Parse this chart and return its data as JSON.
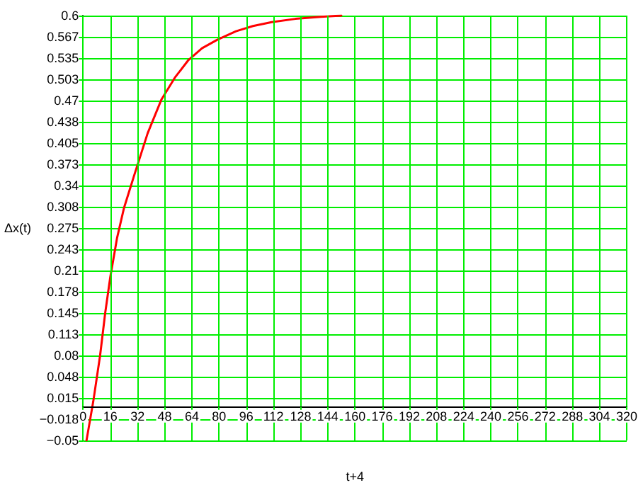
{
  "chart_data": {
    "type": "line",
    "xlabel": "t+4",
    "ylabel": "Δx(t)",
    "series": [
      {
        "color": "#ff0000",
        "x": [
          2,
          6,
          10,
          13,
          16,
          20,
          24,
          30,
          38,
          46,
          54,
          62,
          70,
          79,
          90,
          100,
          111,
          125,
          140,
          152
        ],
        "values": [
          -0.05,
          0.01,
          0.08,
          0.145,
          0.2,
          0.26,
          0.305,
          0.355,
          0.42,
          0.471,
          0.505,
          0.532,
          0.55,
          0.563,
          0.576,
          0.584,
          0.59,
          0.595,
          0.598,
          0.6
        ]
      }
    ],
    "xlim": [
      0,
      320
    ],
    "xticks": [
      0,
      16,
      32,
      48,
      64,
      80,
      96,
      112,
      128,
      144,
      160,
      176,
      192,
      208,
      224,
      240,
      256,
      272,
      288,
      304,
      320
    ],
    "ylim": [
      -0.05,
      0.6
    ],
    "yticks": [
      {
        "value": -0.05,
        "label": "−0.05"
      },
      {
        "value": -0.0175,
        "label": "−0.018"
      },
      0.015,
      {
        "value": 0.0475,
        "label": "0.048"
      },
      0.08,
      {
        "value": 0.1125,
        "label": "0.113"
      },
      0.145,
      {
        "value": 0.1775,
        "label": "0.178"
      },
      0.21,
      {
        "value": 0.2425,
        "label": "0.243"
      },
      0.275,
      {
        "value": 0.3075,
        "label": "0.308"
      },
      0.34,
      {
        "value": 0.3725,
        "label": "0.373"
      },
      0.405,
      {
        "value": 0.4375,
        "label": "0.438"
      },
      0.47,
      {
        "value": 0.5025,
        "label": "0.503"
      },
      0.535,
      {
        "value": 0.5675,
        "label": "0.567"
      },
      0.6
    ],
    "grid": true,
    "marker": "none",
    "line_style": "solid"
  }
}
